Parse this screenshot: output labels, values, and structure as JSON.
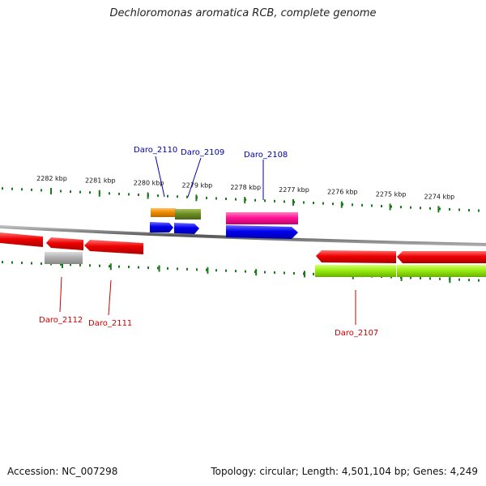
{
  "title": "Dechloromonas aromatica RCB, complete genome",
  "accession_text": "Accession: NC_007298",
  "summary_text": "Topology: circular; Length: 4,501,104 bp; Genes: 4,249",
  "ticks": [
    {
      "label": "2282 kbp"
    },
    {
      "label": "2281 kbp"
    },
    {
      "label": "2280 kbp"
    },
    {
      "label": "2279 kbp"
    },
    {
      "label": "2278 kbp"
    },
    {
      "label": "2277 kbp"
    },
    {
      "label": "2276 kbp"
    },
    {
      "label": "2275 kbp"
    },
    {
      "label": "2274 kbp"
    }
  ],
  "gene_labels": [
    {
      "name": "Daro_2110",
      "color": "#0000aa"
    },
    {
      "name": "Daro_2109",
      "color": "#0000aa"
    },
    {
      "name": "Daro_2108",
      "color": "#0000aa"
    },
    {
      "name": "Daro_2112",
      "color": "#cc0000"
    },
    {
      "name": "Daro_2111",
      "color": "#cc0000"
    },
    {
      "name": "Daro_2107",
      "color": "#cc0000"
    }
  ],
  "colors": {
    "forward_label": "#0000aa",
    "reverse_label": "#cc0000",
    "tick": "#1a7a1a",
    "backbone": "#888888",
    "cds_reverse": "#ee0000",
    "cds_forward": "#0000ee",
    "orange": "#f08c00",
    "olive": "#6b8e23",
    "magenta": "#ff1493",
    "lime": "#99ee11",
    "grey": "#aaaaaa"
  }
}
